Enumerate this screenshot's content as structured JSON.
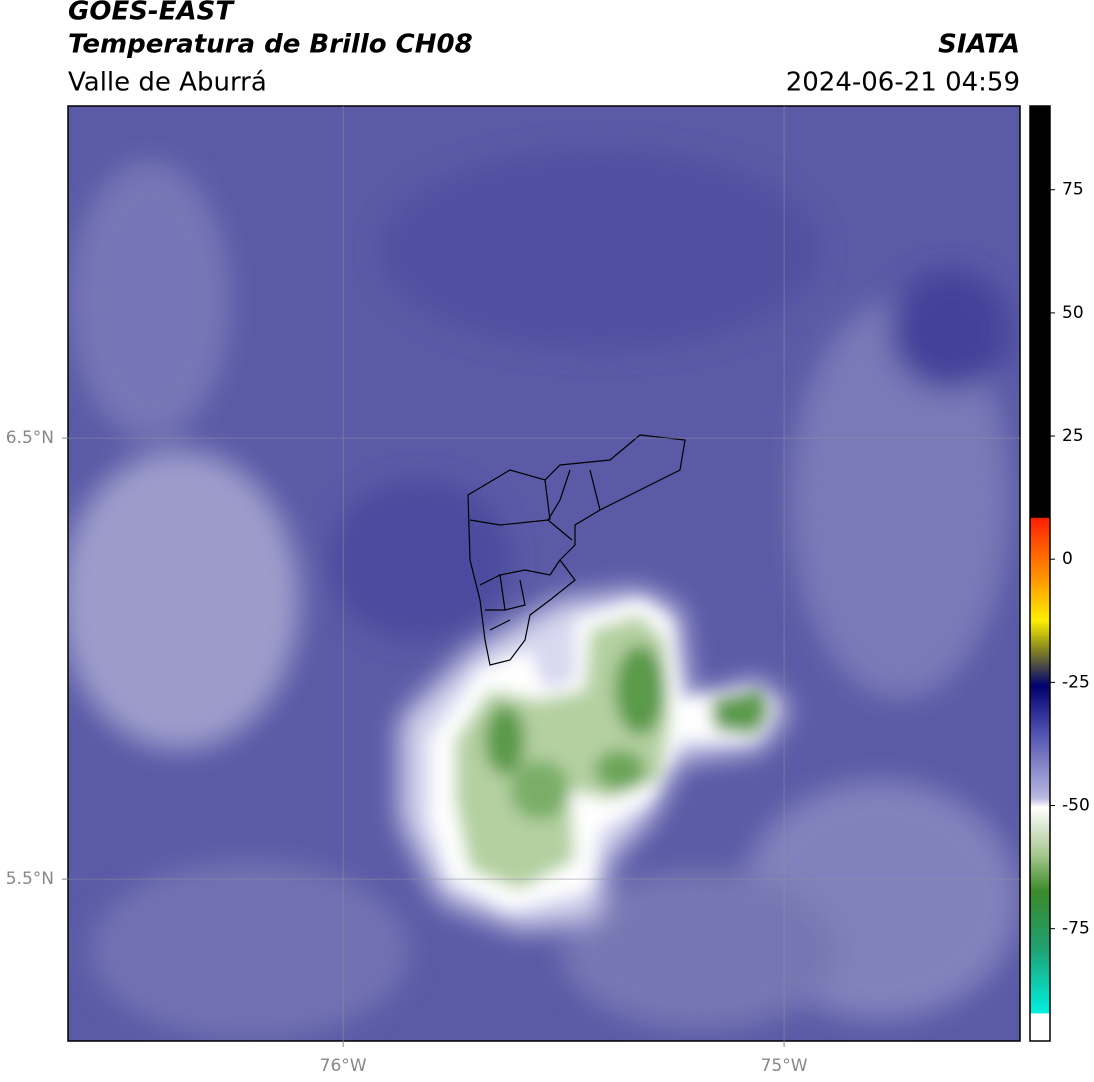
{
  "header": {
    "title": "GOES-EAST",
    "subtitle": "Temperatura de Brillo CH08",
    "region": "Valle de Aburrá",
    "source": "SIATA",
    "timestamp": "2024-06-21 04:59"
  },
  "map": {
    "lonlim": [
      -76.624,
      -74.465
    ],
    "latlim": [
      5.133,
      7.253
    ],
    "grid": true,
    "lon_ticks": [
      {
        "value": -76,
        "label": "76°W"
      },
      {
        "value": -75,
        "label": "75°W"
      }
    ],
    "lat_ticks": [
      {
        "value": 6.5,
        "label": "6.5°N"
      },
      {
        "value": 5.5,
        "label": "5.5°N"
      }
    ]
  },
  "colorbar": {
    "clim": [
      -97.8,
      92
    ],
    "ticks": [
      75,
      50,
      25,
      0,
      -25,
      -50,
      -75
    ]
  }
}
